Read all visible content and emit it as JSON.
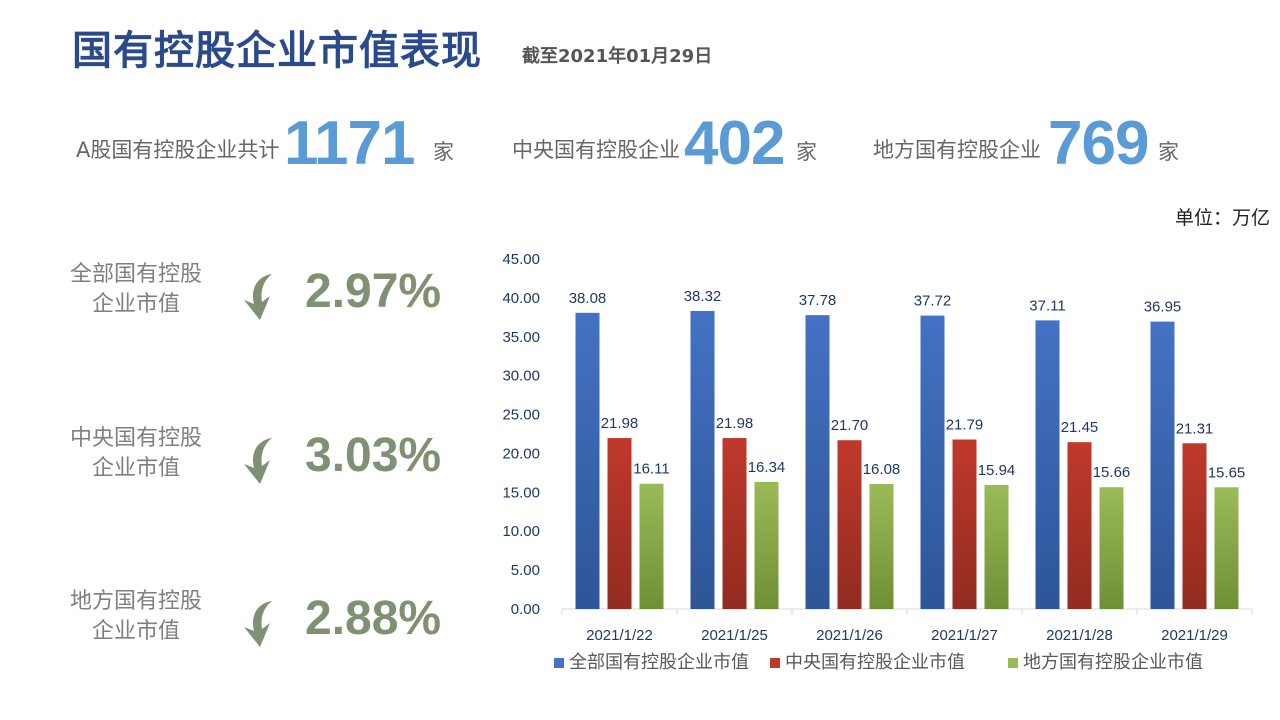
{
  "header": {
    "title": "国有控股企业市值表现",
    "subtitle": "截至2021年01月29日"
  },
  "stats": [
    {
      "label": "A股国有控股企业共计",
      "value": "1171",
      "unit": "家"
    },
    {
      "label": "中央国有控股企业",
      "value": "402",
      "unit": "家"
    },
    {
      "label": "地方国有控股企业",
      "value": "769",
      "unit": "家"
    }
  ],
  "unit_note": "单位：万亿",
  "metrics": [
    {
      "label_line1": "全部国有控股",
      "label_line2": "企业市值",
      "change": "2.97%",
      "direction": "down",
      "icon": "curved-down-arrow-icon"
    },
    {
      "label_line1": "中央国有控股",
      "label_line2": "企业市值",
      "change": "3.03%",
      "direction": "down",
      "icon": "curved-down-arrow-icon"
    },
    {
      "label_line1": "地方国有控股",
      "label_line2": "企业市值",
      "change": "2.88%",
      "direction": "down",
      "icon": "curved-down-arrow-icon"
    }
  ],
  "colors": {
    "title": "#2b4a8b",
    "stat_number": "#5b9bd5",
    "metric_pct": "#7f9172",
    "arrow": "#7f9172",
    "series": [
      "#4472c4",
      "#c0392b",
      "#9bbb59"
    ]
  },
  "chart_data": {
    "type": "bar",
    "categories": [
      "2021/1/22",
      "2021/1/25",
      "2021/1/26",
      "2021/1/27",
      "2021/1/28",
      "2021/1/29"
    ],
    "series": [
      {
        "name": "全部国有控股企业市值",
        "values": [
          38.08,
          38.32,
          37.78,
          37.72,
          37.11,
          36.95
        ]
      },
      {
        "name": "中央国有控股企业市值",
        "values": [
          21.98,
          21.98,
          21.7,
          21.79,
          21.45,
          21.31
        ]
      },
      {
        "name": "地方国有控股企业市值",
        "values": [
          16.11,
          16.34,
          16.08,
          15.94,
          15.66,
          15.65
        ]
      }
    ],
    "yticks": [
      "0.00",
      "5.00",
      "10.00",
      "15.00",
      "20.00",
      "25.00",
      "30.00",
      "35.00",
      "40.00",
      "45.00"
    ],
    "ylim": [
      0,
      45
    ],
    "legend_position": "bottom",
    "grid": false
  }
}
